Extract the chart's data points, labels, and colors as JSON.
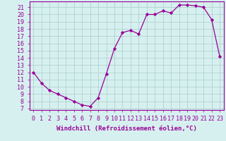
{
  "x": [
    0,
    1,
    2,
    3,
    4,
    5,
    6,
    7,
    8,
    9,
    10,
    11,
    12,
    13,
    14,
    15,
    16,
    17,
    18,
    19,
    20,
    21,
    22,
    23
  ],
  "y": [
    12,
    10.5,
    9.5,
    9,
    8.5,
    8,
    7.5,
    7.3,
    8.5,
    11.8,
    15.3,
    17.5,
    17.8,
    17.3,
    20,
    20,
    20.5,
    20.2,
    21.3,
    21.3,
    21.2,
    21,
    19.3,
    14.2
  ],
  "line_color": "#990099",
  "marker": "D",
  "marker_size": 2.2,
  "bg_color": "#d6f0ef",
  "grid_color": "#aacccc",
  "xlabel": "Windchill (Refroidissement éolien,°C)",
  "ylabel_ticks": [
    7,
    8,
    9,
    10,
    11,
    12,
    13,
    14,
    15,
    16,
    17,
    18,
    19,
    20,
    21
  ],
  "ylim": [
    6.8,
    21.8
  ],
  "xlim": [
    -0.5,
    23.5
  ],
  "tick_color": "#990099",
  "label_fontsize": 6.5,
  "tick_fontsize": 6.0,
  "spine_color": "#990099"
}
